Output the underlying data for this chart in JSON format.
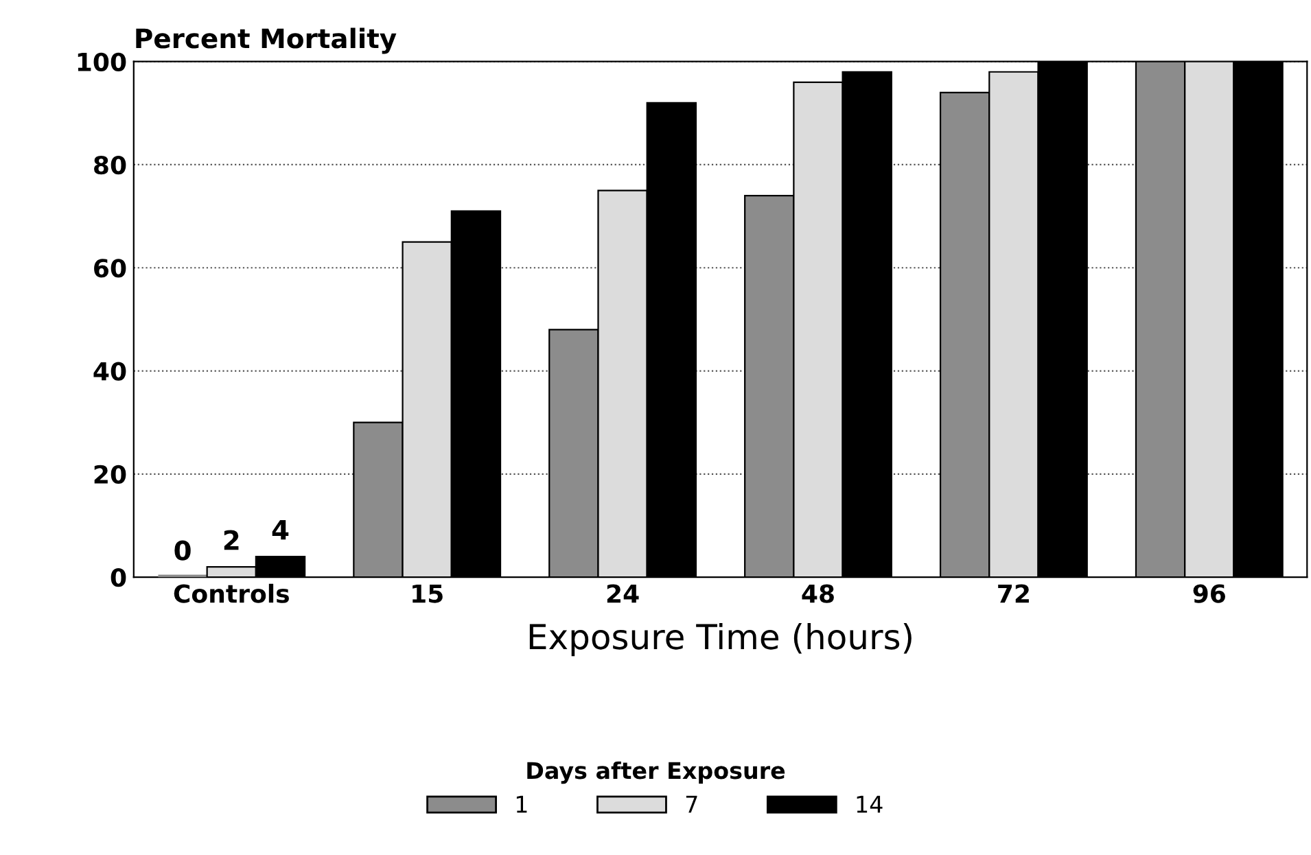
{
  "chart_data": {
    "type": "bar",
    "ylabel": "Percent Mortality",
    "xlabel": "Exposure Time (hours)",
    "legend_title": "Days after Exposure",
    "categories": [
      "Controls",
      "15",
      "24",
      "48",
      "72",
      "96"
    ],
    "series": [
      {
        "name": "1",
        "color": "#8c8c8c",
        "values": [
          0,
          30,
          48,
          74,
          94,
          100
        ],
        "value_labels": [
          "0",
          null,
          null,
          null,
          null,
          null
        ]
      },
      {
        "name": "7",
        "color": "#dcdcdc",
        "values": [
          2,
          65,
          75,
          96,
          98,
          100
        ],
        "value_labels": [
          "2",
          null,
          null,
          null,
          null,
          null
        ]
      },
      {
        "name": "14",
        "color": "#000000",
        "values": [
          4,
          71,
          92,
          98,
          100,
          100
        ],
        "value_labels": [
          "4",
          null,
          null,
          null,
          null,
          null
        ]
      }
    ],
    "ylim": [
      0,
      100
    ],
    "yticks": [
      0,
      20,
      40,
      60,
      80,
      100
    ],
    "grid": "y",
    "legend": "bottom"
  }
}
